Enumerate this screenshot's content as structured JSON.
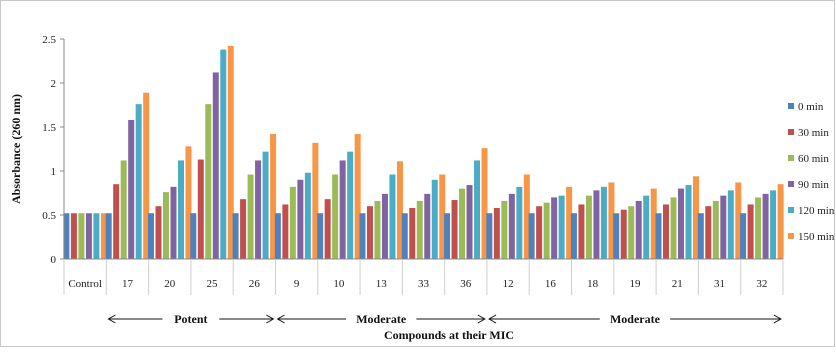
{
  "chart_data": {
    "type": "bar",
    "title": "",
    "xlabel": "Compounds at their MIC",
    "ylabel": "Absorbance (260 nm)",
    "ylim": [
      0,
      2.5
    ],
    "yticks": [
      "0",
      "0.5",
      "1",
      "1.5",
      "2",
      "2.5"
    ],
    "legend_position": "right",
    "grid": false,
    "categories": [
      "Control",
      "17",
      "20",
      "25",
      "26",
      "9",
      "10",
      "13",
      "33",
      "36",
      "12",
      "16",
      "18",
      "19",
      "21",
      "31",
      "32"
    ],
    "series": [
      {
        "name": "0 min",
        "color": "#4f81bd",
        "values": [
          0.52,
          0.52,
          0.52,
          0.52,
          0.52,
          0.52,
          0.52,
          0.52,
          0.52,
          0.52,
          0.52,
          0.52,
          0.52,
          0.52,
          0.52,
          0.52,
          0.52
        ]
      },
      {
        "name": "30 min",
        "color": "#c0504d",
        "values": [
          0.52,
          0.85,
          0.6,
          1.13,
          0.68,
          0.62,
          0.68,
          0.6,
          0.58,
          0.67,
          0.58,
          0.6,
          0.62,
          0.56,
          0.62,
          0.6,
          0.62
        ]
      },
      {
        "name": "60 min",
        "color": "#9bbb59",
        "values": [
          0.52,
          1.12,
          0.76,
          1.76,
          0.96,
          0.82,
          0.96,
          0.66,
          0.66,
          0.8,
          0.66,
          0.64,
          0.72,
          0.6,
          0.7,
          0.66,
          0.7
        ]
      },
      {
        "name": "90 min",
        "color": "#8064a2",
        "values": [
          0.52,
          1.58,
          0.82,
          2.12,
          1.12,
          0.9,
          1.12,
          0.74,
          0.74,
          0.84,
          0.74,
          0.7,
          0.78,
          0.66,
          0.8,
          0.72,
          0.74
        ]
      },
      {
        "name": "120 min",
        "color": "#4bacc6",
        "values": [
          0.52,
          1.76,
          1.12,
          2.38,
          1.22,
          0.98,
          1.22,
          0.96,
          0.9,
          1.12,
          0.82,
          0.72,
          0.82,
          0.72,
          0.84,
          0.78,
          0.78
        ]
      },
      {
        "name": "150 min",
        "color": "#f79646",
        "values": [
          0.52,
          1.89,
          1.28,
          2.42,
          1.42,
          1.32,
          1.42,
          1.11,
          0.96,
          1.26,
          0.96,
          0.82,
          0.87,
          0.8,
          0.94,
          0.87,
          0.85
        ]
      }
    ],
    "annotations": [
      {
        "label": "Potent",
        "from": "17",
        "to": "26"
      },
      {
        "label": "Moderate",
        "from": "9",
        "to": "36"
      },
      {
        "label": "Moderate",
        "from": "12",
        "to": "32"
      }
    ]
  }
}
